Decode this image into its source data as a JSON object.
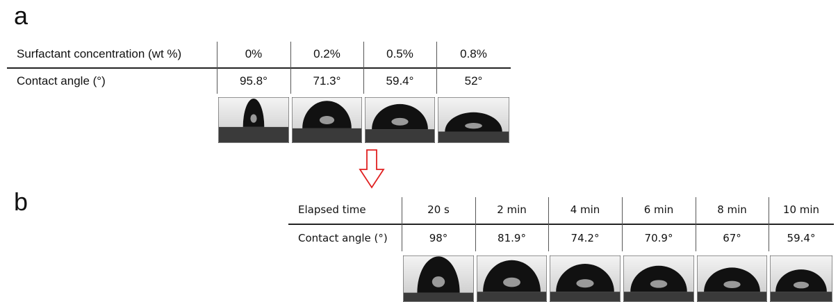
{
  "panel_a": {
    "label": "a",
    "table": {
      "header": [
        "Surfactant concentration (wt %)",
        "0%",
        "0.2%",
        "0.5%",
        "0.8%"
      ],
      "rows": [
        [
          "Contact angle (°)",
          "95.8°",
          "71.3°",
          "59.4°",
          "52°"
        ]
      ]
    }
  },
  "panel_b": {
    "label": "b",
    "table": {
      "header": [
        "Elapsed time",
        "20 s",
        "2 min",
        "4 min",
        "6 min",
        "8 min",
        "10 min"
      ],
      "rows": [
        [
          "Contact angle (°)",
          "98°",
          "81.9°",
          "74.2°",
          "70.9°",
          "67°",
          "59.4°"
        ]
      ]
    }
  }
}
